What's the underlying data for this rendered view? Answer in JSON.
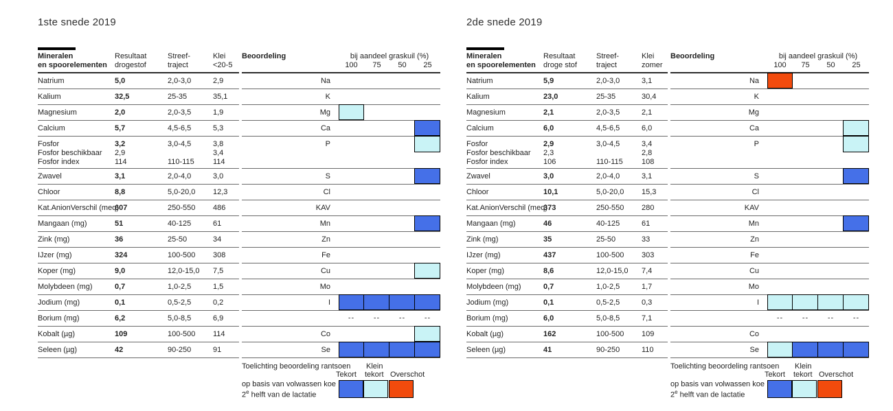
{
  "colors": {
    "tekort": "#4570E8",
    "klein_tekort": "#C9F3F6",
    "overschot": "#F24B0D"
  },
  "legend": {
    "heading": "Toelichting beoordeling rantsoen",
    "label_tekort": "Tekort",
    "label_klein_line1": "Klein",
    "label_klein_line2": "tekort",
    "label_overschot": "Overschot",
    "note_line1": "op basis van volwassen koe",
    "note_line2_prefix": "2",
    "note_line2_sup": "e",
    "note_line2_rest": " helft van de lactatie"
  },
  "tables": [
    {
      "title": "1ste snede 2019",
      "header": {
        "col_name_line1": "Mineralen",
        "col_name_line2": "en spoorelementen",
        "col_result_line1": "Resultaat",
        "col_result_line2": "drogestof",
        "col_target_line1": "Streef-",
        "col_target_line2": "traject",
        "col_soil_line1": "Klei",
        "col_soil_line2": "<20-5",
        "col_assessment": "Beoordeling",
        "col_share": "bij aandeel graskuil (%)",
        "share_ticks": [
          "100",
          "75",
          "50",
          "25"
        ]
      },
      "rows": [
        {
          "name": [
            "Natrium"
          ],
          "result": [
            "5,0"
          ],
          "target": [
            "2,0-3,0"
          ],
          "soil": [
            "2,9"
          ],
          "symbol": "Na",
          "cells": [
            null,
            null,
            null,
            null
          ]
        },
        {
          "name": [
            "Kalium"
          ],
          "result": [
            "32,5"
          ],
          "target": [
            "25-35"
          ],
          "soil": [
            "35,1"
          ],
          "symbol": "K",
          "cells": [
            null,
            null,
            null,
            null
          ]
        },
        {
          "name": [
            "Magnesium"
          ],
          "result": [
            "2,0"
          ],
          "target": [
            "2,0-3,5"
          ],
          "soil": [
            "1,9"
          ],
          "symbol": "Mg",
          "cells": [
            "klein",
            null,
            null,
            null
          ]
        },
        {
          "name": [
            "Calcium"
          ],
          "result": [
            "5,7"
          ],
          "target": [
            "4,5-6,5"
          ],
          "soil": [
            "5,3"
          ],
          "symbol": "Ca",
          "cells": [
            null,
            null,
            null,
            "tekort"
          ]
        },
        {
          "name": [
            "Fosfor",
            "Fosfor beschikbaar",
            "Fosfor index"
          ],
          "result": [
            "3,2",
            "2,9",
            "114"
          ],
          "target": [
            "3,0-4,5",
            "",
            "110-115"
          ],
          "soil": [
            "3,8",
            "3,4",
            "114"
          ],
          "symbol": "P",
          "cells": [
            null,
            null,
            null,
            "klein"
          ],
          "tall": true
        },
        {
          "name": [
            "Zwavel"
          ],
          "result": [
            "3,1"
          ],
          "target": [
            "2,0-4,0"
          ],
          "soil": [
            "3,0"
          ],
          "symbol": "S",
          "cells": [
            null,
            null,
            null,
            "tekort"
          ]
        },
        {
          "name": [
            "Chloor"
          ],
          "result": [
            "8,8"
          ],
          "target": [
            "5,0-20,0"
          ],
          "soil": [
            "12,3"
          ],
          "symbol": "Cl",
          "cells": [
            null,
            null,
            null,
            null
          ]
        },
        {
          "name": [
            "Kat.AnionVerschil (meq)"
          ],
          "result": [
            "607"
          ],
          "target": [
            "250-550"
          ],
          "soil": [
            "486"
          ],
          "symbol": "KAV",
          "cells": [
            null,
            null,
            null,
            null
          ]
        },
        {
          "name": [
            "Mangaan (mg)"
          ],
          "result": [
            "51"
          ],
          "target": [
            "40-125"
          ],
          "soil": [
            "61"
          ],
          "symbol": "Mn",
          "cells": [
            null,
            null,
            null,
            "tekort"
          ]
        },
        {
          "name": [
            "Zink (mg)"
          ],
          "result": [
            "36"
          ],
          "target": [
            "25-50"
          ],
          "soil": [
            "34"
          ],
          "symbol": "Zn",
          "cells": [
            null,
            null,
            null,
            null
          ]
        },
        {
          "name": [
            "IJzer (mg)"
          ],
          "result": [
            "324"
          ],
          "target": [
            "100-500"
          ],
          "soil": [
            "308"
          ],
          "symbol": "Fe",
          "cells": [
            null,
            null,
            null,
            null
          ]
        },
        {
          "name": [
            "Koper (mg)"
          ],
          "result": [
            "9,0"
          ],
          "target": [
            "12,0-15,0"
          ],
          "soil": [
            "7,5"
          ],
          "symbol": "Cu",
          "cells": [
            null,
            null,
            null,
            "klein"
          ]
        },
        {
          "name": [
            "Molybdeen (mg)"
          ],
          "result": [
            "0,7"
          ],
          "target": [
            "1,0-2,5"
          ],
          "soil": [
            "1,5"
          ],
          "symbol": "Mo",
          "cells": [
            null,
            null,
            null,
            null
          ]
        },
        {
          "name": [
            "Jodium (mg)"
          ],
          "result": [
            "0,1"
          ],
          "target": [
            "0,5-2,5"
          ],
          "soil": [
            "0,2"
          ],
          "symbol": "I",
          "cells": [
            "tekort",
            "tekort",
            "tekort",
            "tekort"
          ]
        },
        {
          "name": [
            "Borium (mg)"
          ],
          "result": [
            "6,2"
          ],
          "target": [
            "5,0-8,5"
          ],
          "soil": [
            "6,9"
          ],
          "symbol": "",
          "dashes": true
        },
        {
          "name": [
            "Kobalt (µg)"
          ],
          "result": [
            "109"
          ],
          "target": [
            "100-500"
          ],
          "soil": [
            "114"
          ],
          "symbol": "Co",
          "cells": [
            null,
            null,
            null,
            "klein"
          ]
        },
        {
          "name": [
            "Seleen (µg)"
          ],
          "result": [
            "42"
          ],
          "target": [
            "90-250"
          ],
          "soil": [
            "91"
          ],
          "symbol": "Se",
          "cells": [
            "tekort",
            "tekort",
            "tekort",
            "tekort"
          ]
        }
      ]
    },
    {
      "title": "2de snede 2019",
      "header": {
        "col_name_line1": "Mineralen",
        "col_name_line2": "en spoorelementen",
        "col_result_line1": "Resultaat",
        "col_result_line2": "droge stof",
        "col_target_line1": "Streef-",
        "col_target_line2": "traject",
        "col_soil_line1": "Klei",
        "col_soil_line2": "zomer",
        "col_assessment": "Beoordeling",
        "col_share": "bij aandeel graskuil (%)",
        "share_ticks": [
          "100",
          "75",
          "50",
          "25"
        ]
      },
      "rows": [
        {
          "name": [
            "Natrium"
          ],
          "result": [
            "5,9"
          ],
          "target": [
            "2,0-3,0"
          ],
          "soil": [
            "3,1"
          ],
          "symbol": "Na",
          "cells": [
            "overschot",
            null,
            null,
            null
          ]
        },
        {
          "name": [
            "Kalium"
          ],
          "result": [
            "23,0"
          ],
          "target": [
            "25-35"
          ],
          "soil": [
            "30,4"
          ],
          "symbol": "K",
          "cells": [
            null,
            null,
            null,
            null
          ]
        },
        {
          "name": [
            "Magnesium"
          ],
          "result": [
            "2,1"
          ],
          "target": [
            "2,0-3,5"
          ],
          "soil": [
            "2,1"
          ],
          "symbol": "Mg",
          "cells": [
            null,
            null,
            null,
            null
          ]
        },
        {
          "name": [
            "Calcium"
          ],
          "result": [
            "6,0"
          ],
          "target": [
            "4,5-6,5"
          ],
          "soil": [
            "6,0"
          ],
          "symbol": "Ca",
          "cells": [
            null,
            null,
            null,
            "klein"
          ]
        },
        {
          "name": [
            "Fosfor",
            "Fosfor beschikbaar",
            "Fosfor index"
          ],
          "result": [
            "2,9",
            "2,3",
            "106"
          ],
          "target": [
            "3,0-4,5",
            "",
            "110-115"
          ],
          "soil": [
            "3,4",
            "2,8",
            "108"
          ],
          "symbol": "P",
          "cells": [
            null,
            null,
            null,
            "klein"
          ],
          "tall": true
        },
        {
          "name": [
            "Zwavel"
          ],
          "result": [
            "3,0"
          ],
          "target": [
            "2,0-4,0"
          ],
          "soil": [
            "3,1"
          ],
          "symbol": "S",
          "cells": [
            null,
            null,
            null,
            "tekort"
          ]
        },
        {
          "name": [
            "Chloor"
          ],
          "result": [
            "10,1"
          ],
          "target": [
            "5,0-20,0"
          ],
          "soil": [
            "15,3"
          ],
          "symbol": "Cl",
          "cells": [
            null,
            null,
            null,
            null
          ]
        },
        {
          "name": [
            "Kat.AnionVerschil (meq)"
          ],
          "result": [
            "373"
          ],
          "target": [
            "250-550"
          ],
          "soil": [
            "280"
          ],
          "symbol": "KAV",
          "cells": [
            null,
            null,
            null,
            null
          ]
        },
        {
          "name": [
            "Mangaan (mg)"
          ],
          "result": [
            "46"
          ],
          "target": [
            "40-125"
          ],
          "soil": [
            "61"
          ],
          "symbol": "Mn",
          "cells": [
            null,
            null,
            null,
            "tekort"
          ]
        },
        {
          "name": [
            "Zink (mg)"
          ],
          "result": [
            "35"
          ],
          "target": [
            "25-50"
          ],
          "soil": [
            "33"
          ],
          "symbol": "Zn",
          "cells": [
            null,
            null,
            null,
            null
          ]
        },
        {
          "name": [
            "IJzer (mg)"
          ],
          "result": [
            "437"
          ],
          "target": [
            "100-500"
          ],
          "soil": [
            "303"
          ],
          "symbol": "Fe",
          "cells": [
            null,
            null,
            null,
            null
          ]
        },
        {
          "name": [
            "Koper (mg)"
          ],
          "result": [
            "8,6"
          ],
          "target": [
            "12,0-15,0"
          ],
          "soil": [
            "7,4"
          ],
          "symbol": "Cu",
          "cells": [
            null,
            null,
            null,
            null
          ]
        },
        {
          "name": [
            "Molybdeen (mg)"
          ],
          "result": [
            "0,7"
          ],
          "target": [
            "1,0-2,5"
          ],
          "soil": [
            "1,7"
          ],
          "symbol": "Mo",
          "cells": [
            null,
            null,
            null,
            null
          ]
        },
        {
          "name": [
            "Jodium (mg)"
          ],
          "result": [
            "0,1"
          ],
          "target": [
            "0,5-2,5"
          ],
          "soil": [
            "0,3"
          ],
          "symbol": "I",
          "cells": [
            "klein",
            "klein",
            "klein",
            "klein"
          ]
        },
        {
          "name": [
            "Borium (mg)"
          ],
          "result": [
            "6,0"
          ],
          "target": [
            "5,0-8,5"
          ],
          "soil": [
            "7,1"
          ],
          "symbol": "",
          "dashes": true
        },
        {
          "name": [
            "Kobalt (µg)"
          ],
          "result": [
            "162"
          ],
          "target": [
            "100-500"
          ],
          "soil": [
            "109"
          ],
          "symbol": "Co",
          "cells": [
            null,
            null,
            null,
            null
          ]
        },
        {
          "name": [
            "Seleen (µg)"
          ],
          "result": [
            "41"
          ],
          "target": [
            "90-250"
          ],
          "soil": [
            "110"
          ],
          "symbol": "Se",
          "cells": [
            "klein",
            "tekort",
            "tekort",
            "tekort"
          ]
        }
      ]
    }
  ]
}
